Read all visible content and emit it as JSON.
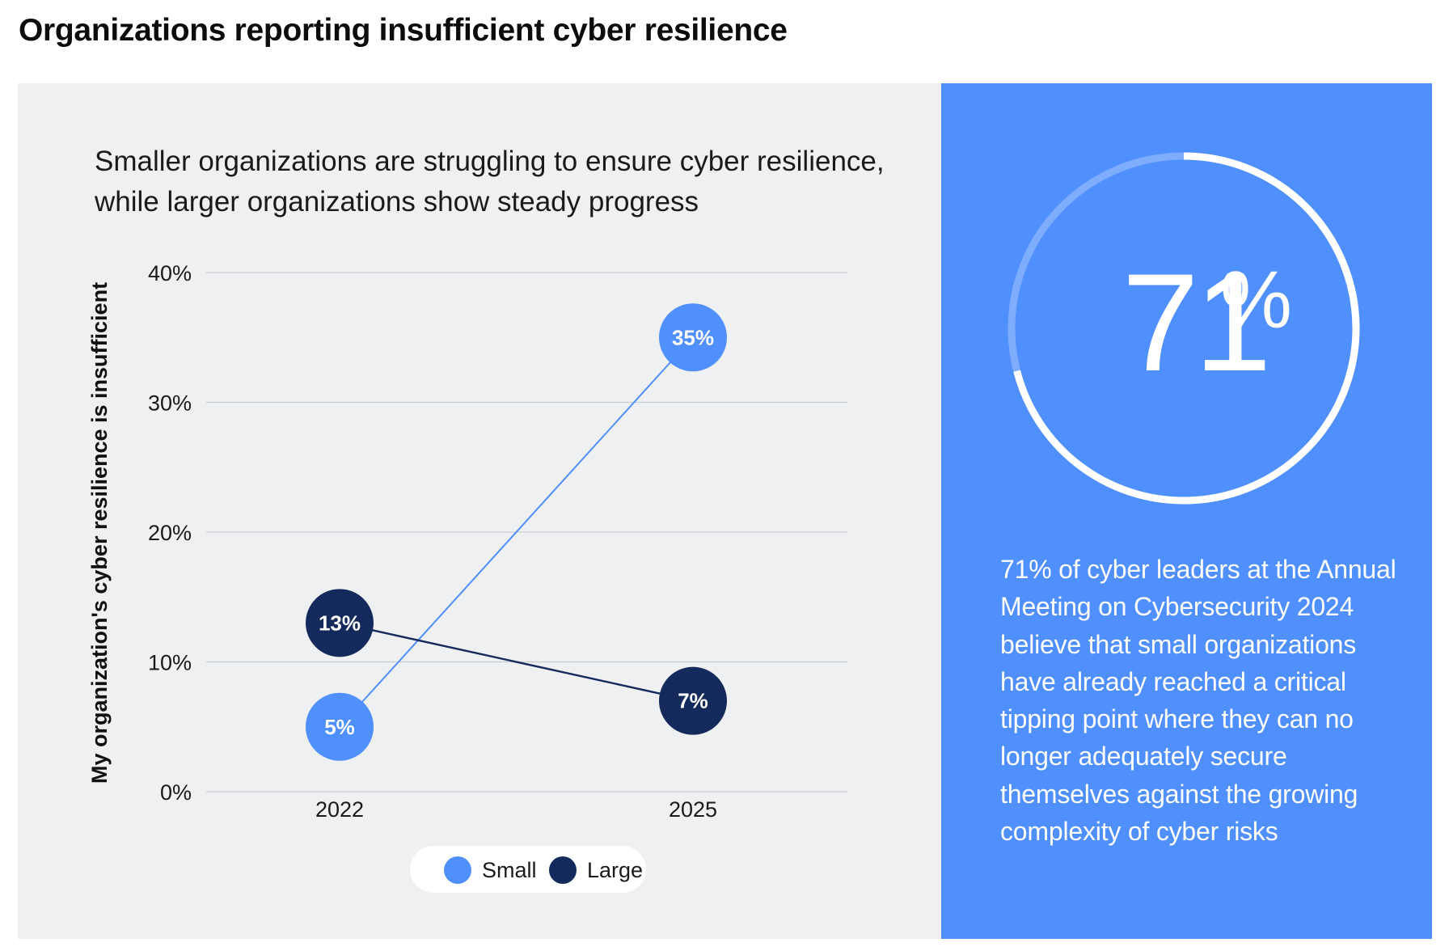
{
  "page": {
    "title": "Organizations reporting insufficient cyber resilience"
  },
  "chart_data": {
    "type": "line",
    "title": "Smaller organizations are struggling to ensure cyber resilience, while larger organizations show steady progress",
    "ylabel": "My organization's cyber resilience is insufficient",
    "xlabel": "",
    "categories": [
      "2022",
      "2025"
    ],
    "ylim": [
      0,
      40
    ],
    "yticks": [
      0,
      10,
      20,
      30,
      40
    ],
    "ytick_labels": [
      "0%",
      "10%",
      "20%",
      "30%",
      "40%"
    ],
    "grid": true,
    "legend_position": "bottom-center",
    "series": [
      {
        "name": "Small",
        "values": [
          5,
          35
        ],
        "labels": [
          "5%",
          "35%"
        ],
        "color": "#4f8ffe"
      },
      {
        "name": "Large",
        "values": [
          13,
          7
        ],
        "labels": [
          "13%",
          "7%"
        ],
        "color": "#152a5c"
      }
    ]
  },
  "stat": {
    "value": "71",
    "suffix": "%",
    "fraction": 0.71,
    "text": "71% of cyber leaders at the Annual Meeting on Cybersecurity 2024 believe that small organizations have already reached a critical tipping point where they can no longer adequately secure themselves against the growing complexity of cyber risks"
  },
  "colors": {
    "panel_background": "#eff0f2",
    "stat_background": "#4f8ffe",
    "small": "#4f8ffe",
    "large": "#152a5c",
    "gridline": "#c9ccd2"
  }
}
